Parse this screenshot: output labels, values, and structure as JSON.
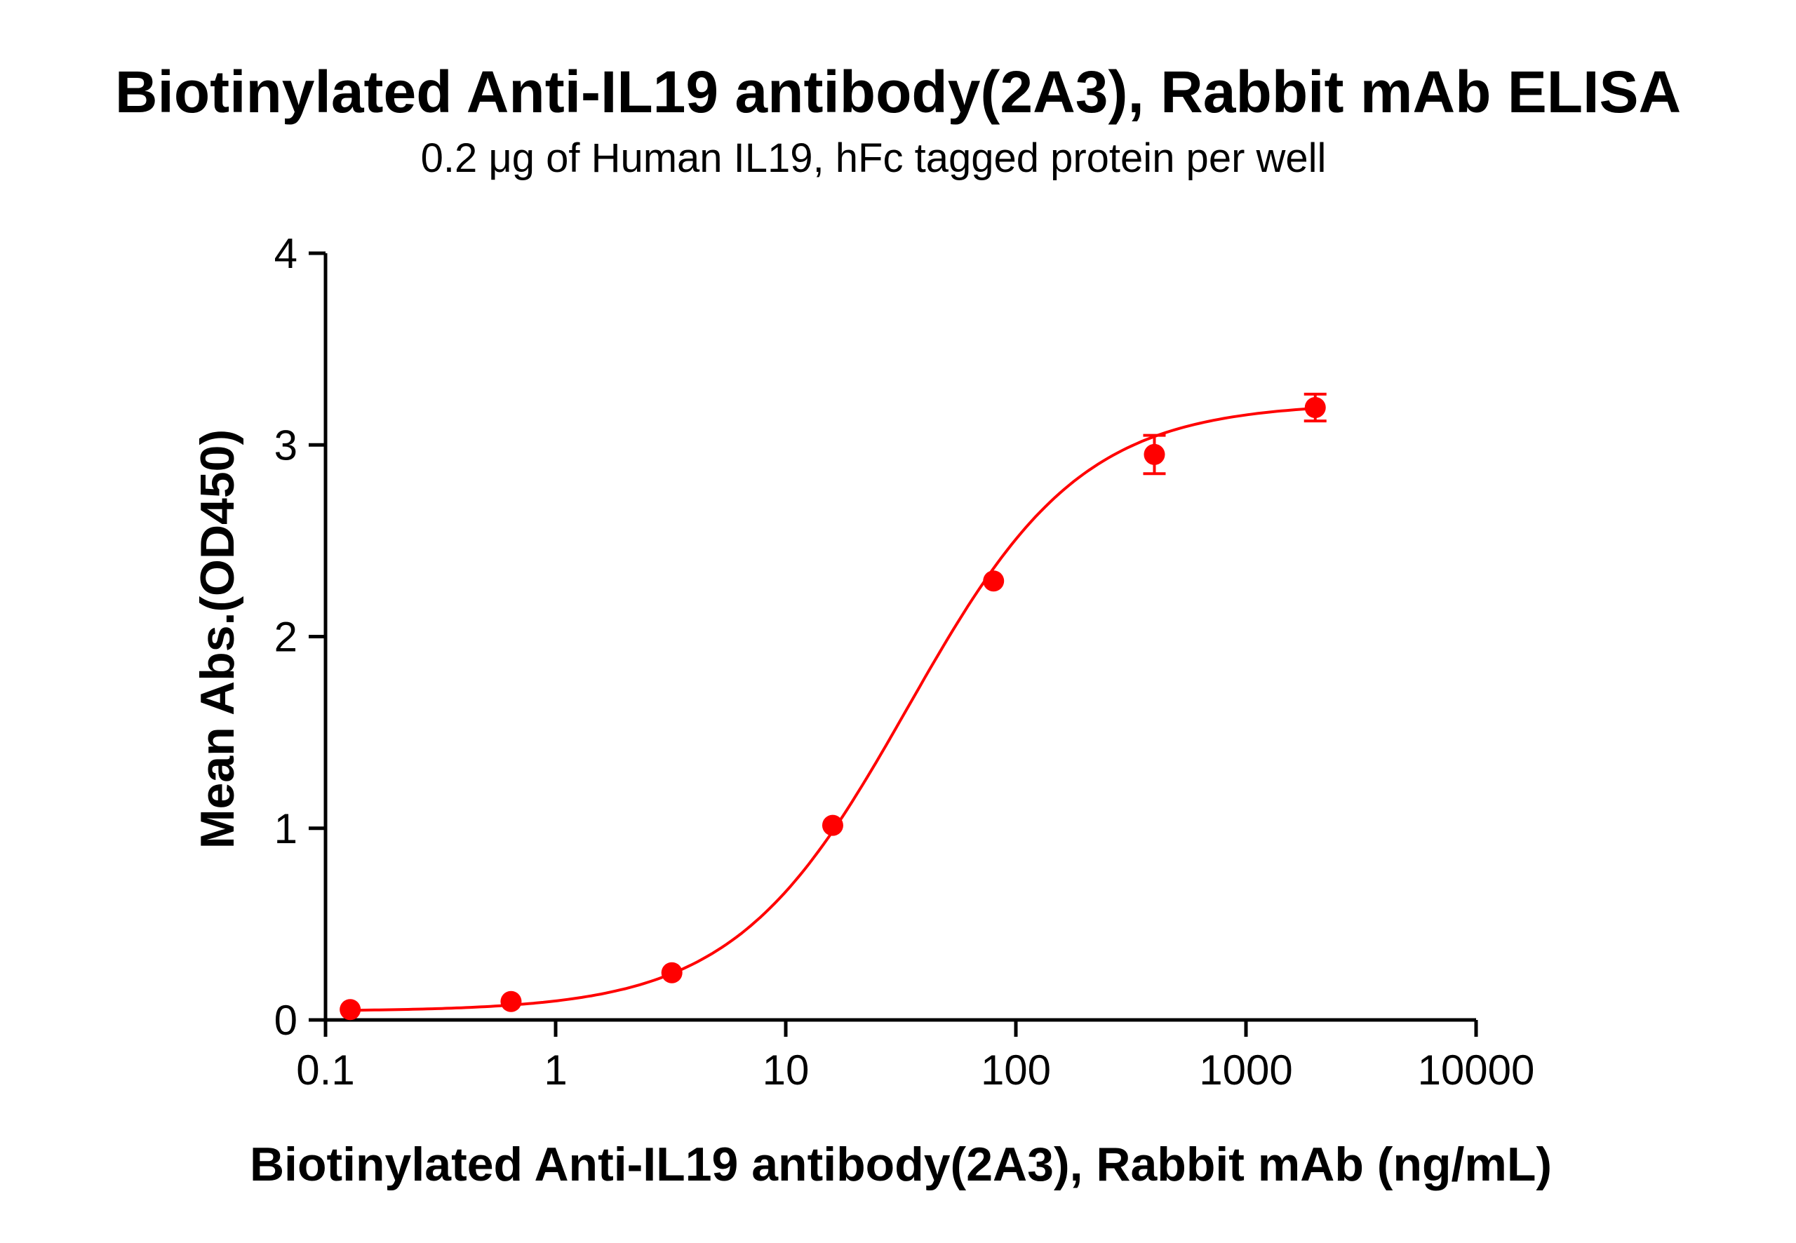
{
  "chart_data": {
    "type": "scatter",
    "title": "Biotinylated Anti-IL19 antibody(2A3), Rabbit mAb ELISA",
    "subtitle": "0.2 μg of Human IL19, hFc tagged protein per well",
    "xlabel": "Biotinylated Anti-IL19 antibody(2A3), Rabbit mAb (ng/mL)",
    "ylabel": "Mean Abs.(OD450)",
    "xscale": "log",
    "xlim": [
      0.1,
      10000
    ],
    "ylim": [
      0,
      4
    ],
    "xticks": [
      "0.1",
      "1",
      "10",
      "100",
      "1000",
      "10000"
    ],
    "yticks": [
      "0",
      "1",
      "2",
      "3",
      "4"
    ],
    "grid": false,
    "color": "#ff0000",
    "fit": "sigmoidal curve",
    "series": [
      {
        "x": [
          0.128,
          0.64,
          3.2,
          16,
          80,
          400,
          2000
        ],
        "y": [
          0.054,
          0.096,
          0.246,
          1.015,
          2.29,
          2.95,
          3.195
        ],
        "error": [
          0,
          0,
          0,
          0,
          0,
          0.1,
          0.07
        ]
      }
    ]
  }
}
